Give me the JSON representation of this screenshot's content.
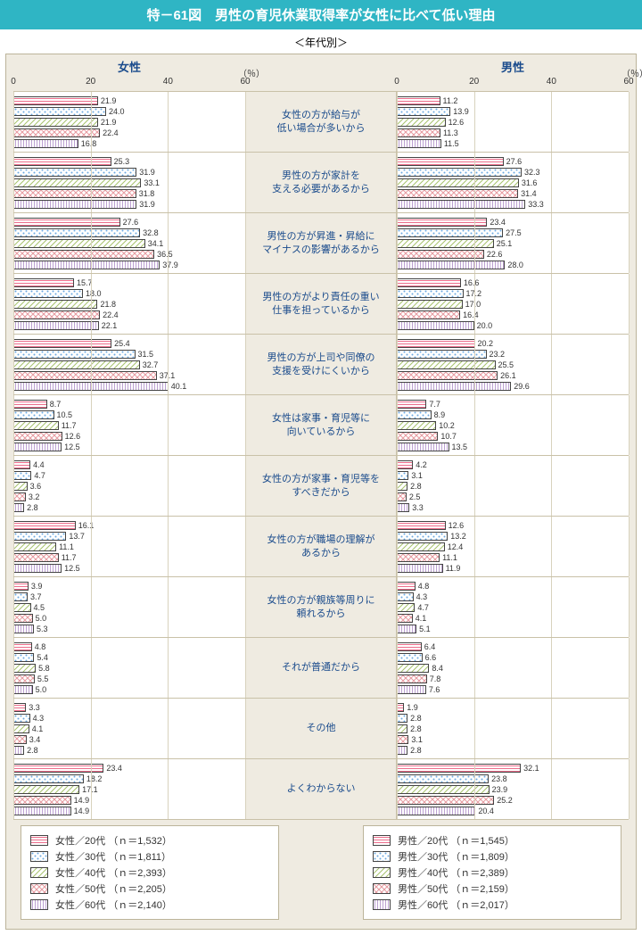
{
  "title": "特－61図　男性の育児休業取得率が女性に比べて低い理由",
  "subtitle": "＜年代別＞",
  "columns": {
    "female": "女性",
    "male": "男性"
  },
  "xaxis": {
    "max": 60,
    "ticks": [
      0,
      20,
      40,
      60
    ],
    "unit_label": "（％）"
  },
  "ages": [
    "20代",
    "30代",
    "40代",
    "50代",
    "60代"
  ],
  "patterns": {
    "20代": {
      "stroke": "#ec6d8b",
      "type": "horiz"
    },
    "30代": {
      "stroke": "#6aa7e0",
      "type": "dots"
    },
    "40代": {
      "stroke": "#a6c26c",
      "type": "diag"
    },
    "50代": {
      "stroke": "#e79aa0",
      "type": "cross"
    },
    "60代": {
      "stroke": "#bca1d1",
      "type": "vert"
    }
  },
  "categories": [
    {
      "label": "女性の方が給与が\n低い場合が多いから",
      "female": [
        21.9,
        24.0,
        21.9,
        22.4,
        16.8
      ],
      "male": [
        11.2,
        13.9,
        12.6,
        11.3,
        11.5
      ]
    },
    {
      "label": "男性の方が家計を\n支える必要があるから",
      "female": [
        25.3,
        31.9,
        33.1,
        31.8,
        31.9
      ],
      "male": [
        27.6,
        32.3,
        31.6,
        31.4,
        33.3
      ]
    },
    {
      "label": "男性の方が昇進・昇給に\nマイナスの影響があるから",
      "female": [
        27.6,
        32.8,
        34.1,
        36.5,
        37.9
      ],
      "male": [
        23.4,
        27.5,
        25.1,
        22.6,
        28.0
      ]
    },
    {
      "label": "男性の方がより責任の重い\n仕事を担っているから",
      "female": [
        15.7,
        18.0,
        21.8,
        22.4,
        22.1
      ],
      "male": [
        16.6,
        17.2,
        17.0,
        16.4,
        20.0
      ]
    },
    {
      "label": "男性の方が上司や同僚の\n支援を受けにくいから",
      "female": [
        25.4,
        31.5,
        32.7,
        37.1,
        40.1
      ],
      "male": [
        20.2,
        23.2,
        25.5,
        26.1,
        29.6
      ]
    },
    {
      "label": "女性は家事・育児等に\n向いているから",
      "female": [
        8.7,
        10.5,
        11.7,
        12.6,
        12.5
      ],
      "male": [
        7.7,
        8.9,
        10.2,
        10.7,
        13.5
      ]
    },
    {
      "label": "女性の方が家事・育児等を\nすべきだから",
      "female": [
        4.4,
        4.7,
        3.6,
        3.2,
        2.8
      ],
      "male": [
        4.2,
        3.1,
        2.8,
        2.5,
        3.3
      ]
    },
    {
      "label": "女性の方が職場の理解が\nあるから",
      "female": [
        16.1,
        13.7,
        11.1,
        11.7,
        12.5
      ],
      "male": [
        12.6,
        13.2,
        12.4,
        11.1,
        11.9
      ]
    },
    {
      "label": "女性の方が親族等周りに\n頼れるから",
      "female": [
        3.9,
        3.7,
        4.5,
        5.0,
        5.3
      ],
      "male": [
        4.8,
        4.3,
        4.7,
        4.1,
        5.1
      ]
    },
    {
      "label": "それが普通だから",
      "female": [
        4.8,
        5.4,
        5.8,
        5.5,
        5.0
      ],
      "male": [
        6.4,
        6.6,
        8.4,
        7.8,
        7.6
      ]
    },
    {
      "label": "その他",
      "female": [
        3.3,
        4.3,
        4.1,
        3.4,
        2.8
      ],
      "male": [
        1.9,
        2.8,
        2.8,
        3.1,
        2.8
      ]
    },
    {
      "label": "よくわからない",
      "female": [
        23.4,
        18.2,
        17.1,
        14.9,
        14.9
      ],
      "male": [
        32.1,
        23.8,
        23.9,
        25.2,
        20.4
      ]
    }
  ],
  "legend": {
    "female": [
      {
        "age": "20代",
        "label": "女性／20代 （ｎ＝1,532）"
      },
      {
        "age": "30代",
        "label": "女性／30代 （ｎ＝1,811）"
      },
      {
        "age": "40代",
        "label": "女性／40代 （ｎ＝2,393）"
      },
      {
        "age": "50代",
        "label": "女性／50代 （ｎ＝2,205）"
      },
      {
        "age": "60代",
        "label": "女性／60代 （ｎ＝2,140）"
      }
    ],
    "male": [
      {
        "age": "20代",
        "label": "男性／20代 （ｎ＝1,545）"
      },
      {
        "age": "30代",
        "label": "男性／30代 （ｎ＝1,809）"
      },
      {
        "age": "40代",
        "label": "男性／40代 （ｎ＝2,389）"
      },
      {
        "age": "50代",
        "label": "男性／50代 （ｎ＝2,159）"
      },
      {
        "age": "60代",
        "label": "男性／60代 （ｎ＝2,017）"
      }
    ]
  },
  "colors": {
    "title_bg": "#2fb5c4",
    "panel_bg": "#efebe1",
    "border": "#bcb49a",
    "grid": "#d8d2bd",
    "text_accent": "#1a4b8c"
  }
}
